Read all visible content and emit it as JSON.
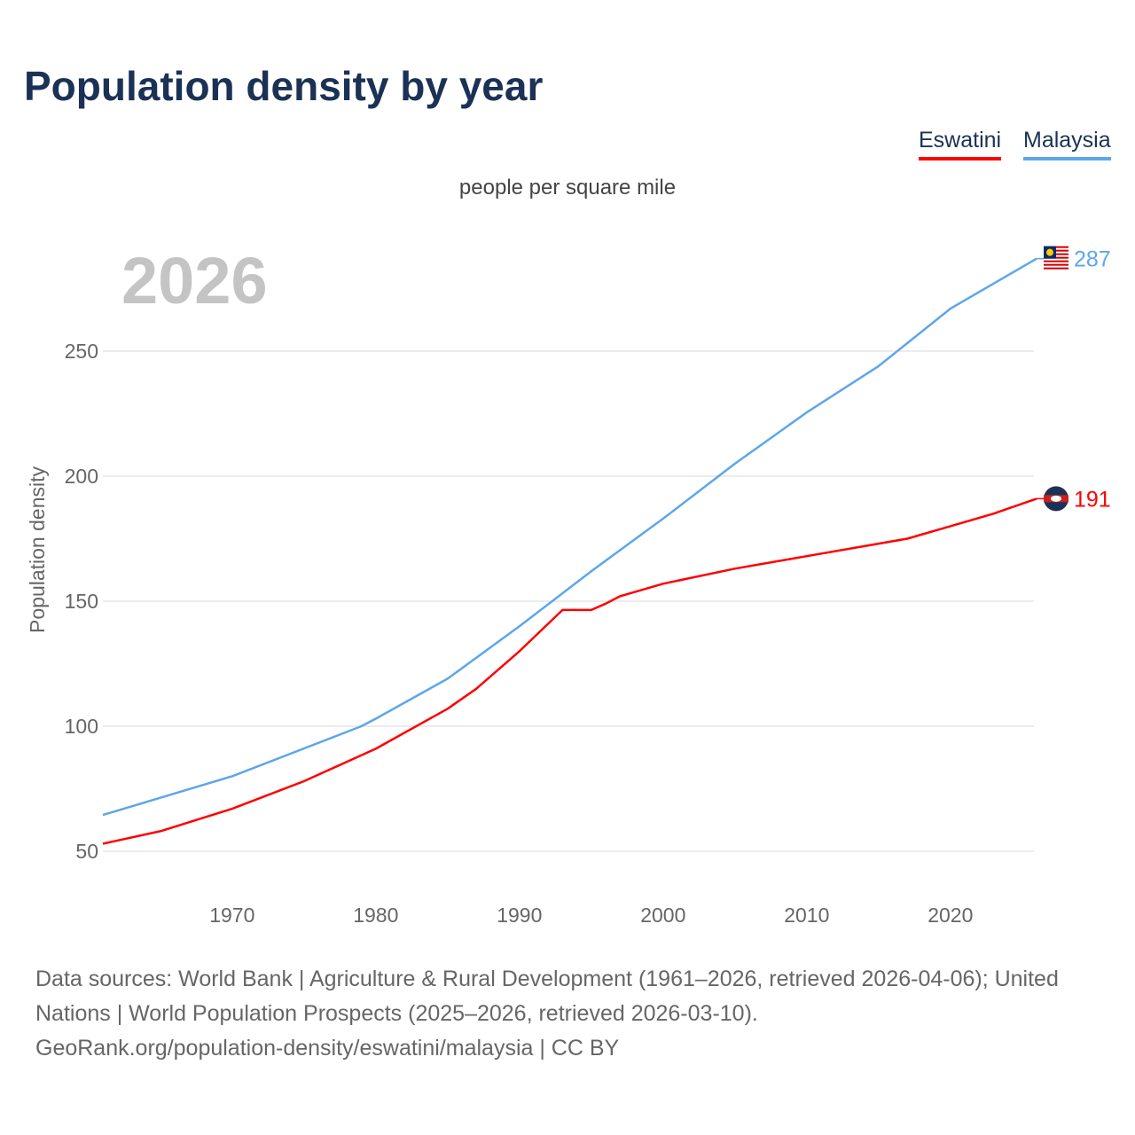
{
  "title": "Population density by year",
  "footer": {
    "line1": "Data sources: World Bank | Agriculture & Rural Development (1961–2026, retrieved 2026-04-06); United",
    "line2": "Nations | World Population Prospects (2025–2026, retrieved 2026-03-10).",
    "line3": "GeoRank.org/population-density/eswatini/malaysia | CC BY"
  },
  "chart_data": {
    "type": "line",
    "title": "Population density by year",
    "subtitle": "people per square mile",
    "ylabel": "Population density",
    "xlabel": "",
    "year_label": "2026",
    "xlim": [
      1961,
      2026
    ],
    "ylim": [
      35,
      300
    ],
    "yticks": [
      50,
      100,
      150,
      200,
      250
    ],
    "xticks": [
      1970,
      1980,
      1990,
      2000,
      2010,
      2020
    ],
    "grid": true,
    "legend_position": "top-right",
    "series": [
      {
        "name": "Eswatini",
        "color": "#ff0000",
        "end_label": "191",
        "icon": "eswatini-flag-icon",
        "points": [
          [
            1961,
            53
          ],
          [
            1965,
            58
          ],
          [
            1970,
            67
          ],
          [
            1975,
            78
          ],
          [
            1980,
            91
          ],
          [
            1985,
            107
          ],
          [
            1987,
            115
          ],
          [
            1990,
            130
          ],
          [
            1992,
            141
          ],
          [
            1993,
            146.5
          ],
          [
            1995,
            146.5
          ],
          [
            1996,
            149
          ],
          [
            1997,
            152
          ],
          [
            2000,
            157
          ],
          [
            2005,
            163
          ],
          [
            2010,
            168
          ],
          [
            2015,
            173
          ],
          [
            2017,
            175
          ],
          [
            2020,
            180
          ],
          [
            2023,
            185
          ],
          [
            2026,
            191
          ]
        ]
      },
      {
        "name": "Malaysia",
        "color": "#5ea6ea",
        "end_label": "287",
        "icon": "malaysia-flag-icon",
        "points": [
          [
            1961,
            64.5
          ],
          [
            1970,
            80
          ],
          [
            1979,
            100
          ],
          [
            1980,
            103
          ],
          [
            1985,
            119
          ],
          [
            1990,
            140
          ],
          [
            1995,
            162
          ],
          [
            2000,
            183
          ],
          [
            2005,
            205
          ],
          [
            2010,
            225.5
          ],
          [
            2015,
            244
          ],
          [
            2020,
            267
          ],
          [
            2026,
            287
          ]
        ]
      }
    ]
  }
}
